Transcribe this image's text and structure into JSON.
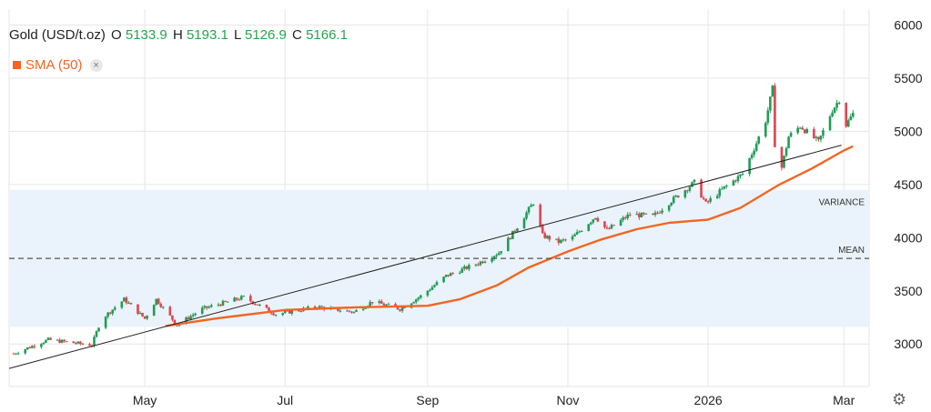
{
  "header": {
    "instrument": "Gold (USD/t.oz)",
    "open_label": "O",
    "open": "5133.9",
    "high_label": "H",
    "high": "5193.1",
    "low_label": "L",
    "low": "5126.9",
    "close_label": "C",
    "close": "5166.1"
  },
  "legend": {
    "sma_label": "SMA (50)",
    "sma_color": "#f26522",
    "close_symbol": "×"
  },
  "colors": {
    "up": "#1f9d55",
    "down": "#e0444f",
    "sma": "#f26522",
    "band": "#eaf3fb",
    "trendline": "#222222",
    "mean": "#555555"
  },
  "icons": {
    "settings": "gear-icon"
  },
  "chart_data": {
    "type": "candlestick",
    "instrument": "Gold (USD/t.oz)",
    "y_ticks": [
      3000,
      3500,
      4000,
      4500,
      5000,
      5500,
      6000
    ],
    "y_tick_labels": [
      "3000",
      "3500",
      "4000",
      "4500",
      "5000",
      "5500",
      "6000"
    ],
    "ylim": [
      2600,
      6150
    ],
    "xlim": [
      "2025-03-03",
      "2026-03-12"
    ],
    "x_ticks": [
      "2025-05-01",
      "2025-07-01",
      "2025-09-01",
      "2025-11-01",
      "2026-01-01",
      "2026-03-01"
    ],
    "x_tick_labels": [
      "May",
      "Jul",
      "Sep",
      "Nov",
      "2026",
      "Mar"
    ],
    "grid": true,
    "annotations": {
      "variance_label": "VARIANCE",
      "variance_band": [
        3160,
        4450
      ],
      "mean_label": "MEAN",
      "mean_value": 3805,
      "trendline": [
        [
          "2025-03-03",
          2770
        ],
        [
          "2026-02-28",
          4870
        ]
      ]
    },
    "price_anchors": [
      [
        "2025-03-05",
        2910
      ],
      [
        "2025-03-20",
        3040
      ],
      [
        "2025-04-08",
        2990
      ],
      [
        "2025-04-12",
        3230
      ],
      [
        "2025-04-22",
        3420
      ],
      [
        "2025-05-01",
        3240
      ],
      [
        "2025-05-06",
        3420
      ],
      [
        "2025-05-15",
        3180
      ],
      [
        "2025-05-26",
        3330
      ],
      [
        "2025-06-13",
        3440
      ],
      [
        "2025-06-27",
        3280
      ],
      [
        "2025-07-15",
        3350
      ],
      [
        "2025-07-31",
        3300
      ],
      [
        "2025-08-08",
        3400
      ],
      [
        "2025-08-20",
        3330
      ],
      [
        "2025-08-29",
        3450
      ],
      [
        "2025-09-09",
        3640
      ],
      [
        "2025-09-23",
        3760
      ],
      [
        "2025-10-02",
        3860
      ],
      [
        "2025-10-08",
        4040
      ],
      [
        "2025-10-17",
        4330
      ],
      [
        "2025-10-21",
        4020
      ],
      [
        "2025-10-28",
        3960
      ],
      [
        "2025-11-03",
        4000
      ],
      [
        "2025-11-13",
        4200
      ],
      [
        "2025-11-18",
        4070
      ],
      [
        "2025-11-28",
        4220
      ],
      [
        "2025-12-08",
        4200
      ],
      [
        "2025-12-15",
        4330
      ],
      [
        "2025-12-26",
        4520
      ],
      [
        "2025-12-31",
        4320
      ],
      [
        "2026-01-08",
        4470
      ],
      [
        "2026-01-16",
        4600
      ],
      [
        "2026-01-21",
        4840
      ],
      [
        "2026-01-26",
        5100
      ],
      [
        "2026-01-29",
        5400
      ],
      [
        "2026-01-30",
        4880
      ],
      [
        "2026-02-02",
        4660
      ],
      [
        "2026-02-05",
        4950
      ],
      [
        "2026-02-10",
        5050
      ],
      [
        "2026-02-18",
        4900
      ],
      [
        "2026-02-24",
        5200
      ],
      [
        "2026-02-27",
        5300
      ],
      [
        "2026-03-02",
        5060
      ],
      [
        "2026-03-05",
        5166
      ]
    ],
    "series": [
      {
        "name": "SMA (50)",
        "type": "line",
        "points": [
          [
            "2025-05-10",
            3170
          ],
          [
            "2025-06-01",
            3240
          ],
          [
            "2025-07-01",
            3320
          ],
          [
            "2025-08-01",
            3345
          ],
          [
            "2025-09-01",
            3360
          ],
          [
            "2025-09-15",
            3420
          ],
          [
            "2025-10-01",
            3550
          ],
          [
            "2025-10-15",
            3720
          ],
          [
            "2025-11-01",
            3870
          ],
          [
            "2025-11-15",
            3980
          ],
          [
            "2025-12-01",
            4080
          ],
          [
            "2025-12-15",
            4140
          ],
          [
            "2026-01-01",
            4170
          ],
          [
            "2026-01-15",
            4280
          ],
          [
            "2026-02-01",
            4500
          ],
          [
            "2026-02-15",
            4650
          ],
          [
            "2026-03-01",
            4820
          ],
          [
            "2026-03-05",
            4860
          ]
        ]
      }
    ]
  }
}
